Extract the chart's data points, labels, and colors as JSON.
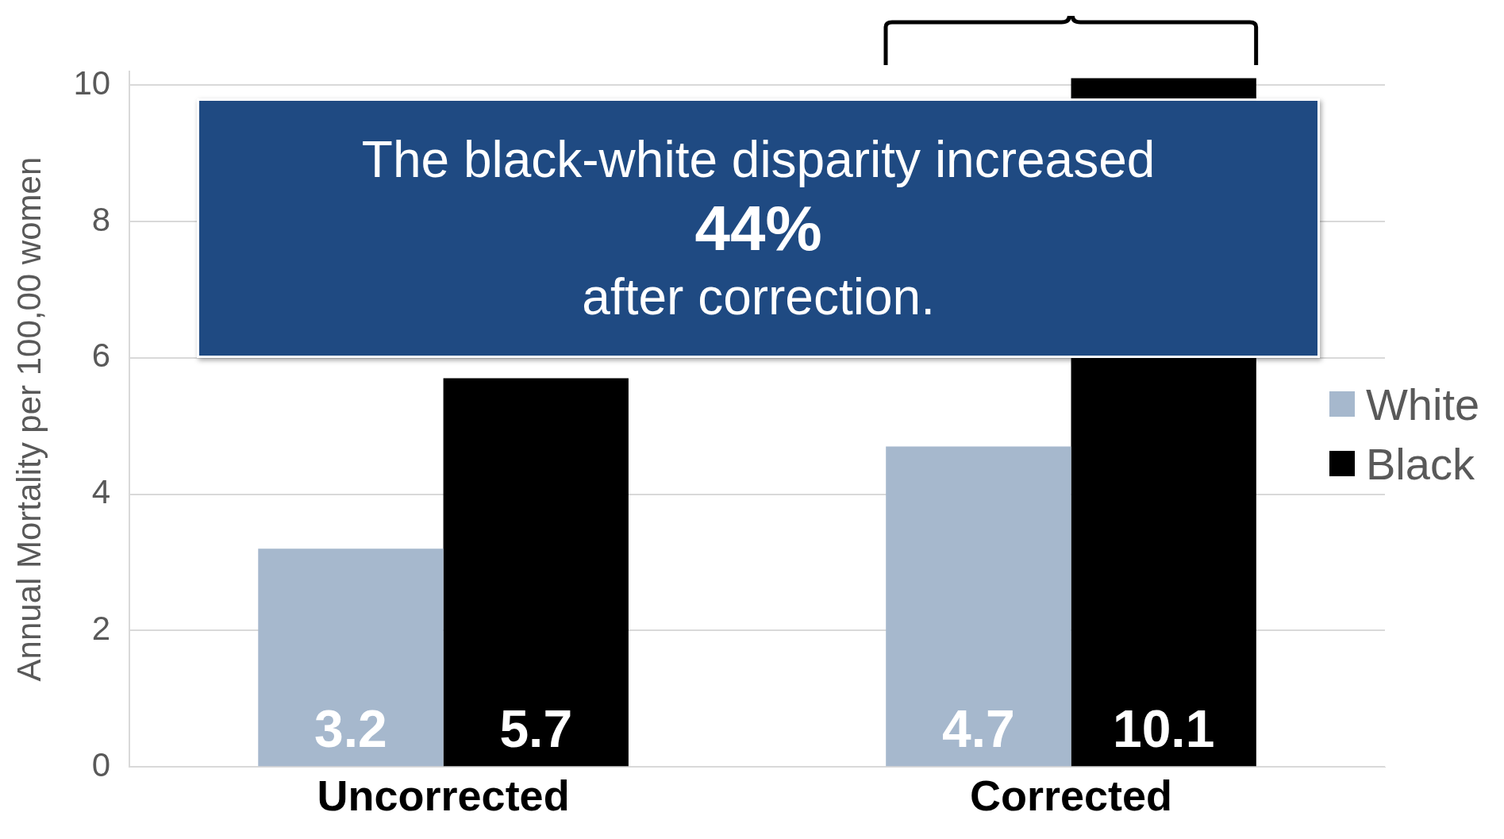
{
  "chart_data": {
    "type": "bar",
    "ylabel": "Annual Mortality per 100,00 women",
    "categories": [
      "Uncorrected",
      "Corrected"
    ],
    "series": [
      {
        "name": "White",
        "color": "#a6b8cd",
        "values": [
          3.2,
          4.7
        ]
      },
      {
        "name": "Black",
        "color": "#000000",
        "values": [
          5.7,
          10.1
        ]
      }
    ],
    "ylim": [
      0,
      10.2
    ],
    "yticks": [
      0,
      2,
      4,
      6,
      8,
      10
    ],
    "grid": "y",
    "legend": "right",
    "data_labels": true,
    "annotations": [
      "The black-white disparity increased",
      "44%",
      "after correction."
    ]
  }
}
